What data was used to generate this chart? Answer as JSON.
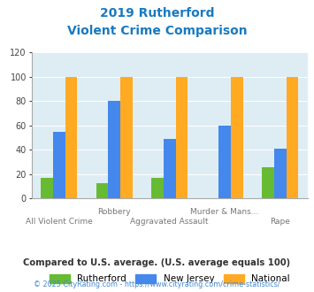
{
  "title_line1": "2019 Rutherford",
  "title_line2": "Violent Crime Comparison",
  "title_color": "#1a7abf",
  "rutherford": [
    17,
    13,
    17,
    0,
    26
  ],
  "new_jersey": [
    55,
    80,
    49,
    60,
    41
  ],
  "national": [
    100,
    100,
    100,
    100,
    100
  ],
  "rutherford_color": "#66bb33",
  "nj_color": "#4488ee",
  "national_color": "#ffaa22",
  "ylim": [
    0,
    120
  ],
  "yticks": [
    0,
    20,
    40,
    60,
    80,
    100,
    120
  ],
  "background_color": "#deedf3",
  "footnote1": "Compared to U.S. average. (U.S. average equals 100)",
  "footnote2": "© 2025 CityRating.com - https://www.cityrating.com/crime-statistics/",
  "legend_labels": [
    "Rutherford",
    "New Jersey",
    "National"
  ],
  "footnote1_color": "#333333",
  "footnote2_color": "#4488cc",
  "top_row_labels": [
    "",
    "Robbery",
    "",
    "Murder & Mans...",
    ""
  ],
  "bot_row_labels": [
    "All Violent Crime",
    "",
    "Aggravated Assault",
    "",
    "Rape"
  ]
}
